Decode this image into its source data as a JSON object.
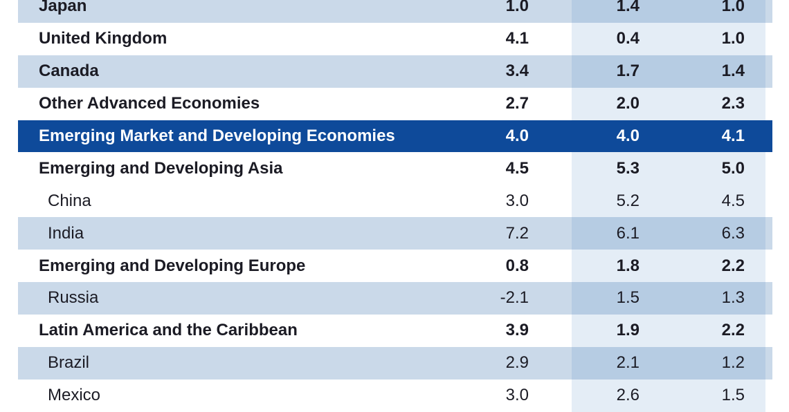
{
  "chart_data": {
    "type": "table",
    "rows": [
      {
        "label": "Japan",
        "values": [
          "1.0",
          "1.4",
          "1.0"
        ],
        "level": 1
      },
      {
        "label": "United Kingdom",
        "values": [
          "4.1",
          "0.4",
          "1.0"
        ],
        "level": 1
      },
      {
        "label": "Canada",
        "values": [
          "3.4",
          "1.7",
          "1.4"
        ],
        "level": 1
      },
      {
        "label": "Other Advanced Economies",
        "values": [
          "2.7",
          "2.0",
          "2.3"
        ],
        "level": 1
      },
      {
        "label": "Emerging Market and Developing Economies",
        "values": [
          "4.0",
          "4.0",
          "4.1"
        ],
        "level": 0
      },
      {
        "label": "Emerging and Developing Asia",
        "values": [
          "4.5",
          "5.3",
          "5.0"
        ],
        "level": 1
      },
      {
        "label": "China",
        "values": [
          "3.0",
          "5.2",
          "4.5"
        ],
        "level": 2
      },
      {
        "label": "India",
        "values": [
          "7.2",
          "6.1",
          "6.3"
        ],
        "level": 2
      },
      {
        "label": "Emerging and Developing Europe",
        "values": [
          "0.8",
          "1.8",
          "2.2"
        ],
        "level": 1
      },
      {
        "label": "Russia",
        "values": [
          "-2.1",
          "1.5",
          "1.3"
        ],
        "level": 2
      },
      {
        "label": "Latin America and the Caribbean",
        "values": [
          "3.9",
          "1.9",
          "2.2"
        ],
        "level": 1
      },
      {
        "label": "Brazil",
        "values": [
          "2.9",
          "2.1",
          "1.2"
        ],
        "level": 2
      },
      {
        "label": "Mexico",
        "values": [
          "3.0",
          "2.6",
          "1.5"
        ],
        "level": 2
      }
    ],
    "colors": {
      "highlight": "#0e4a9a",
      "band": "#cad9e9",
      "column_band": "#b6cce3"
    }
  }
}
